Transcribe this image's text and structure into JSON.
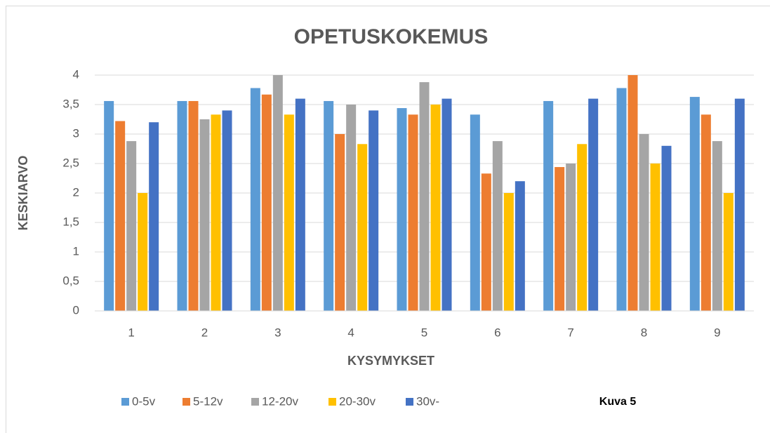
{
  "chart_data": {
    "type": "bar",
    "title": "OPETUSKOKEMUS",
    "x_label": "KYSYMYKSET",
    "y_label": "KESKIARVO",
    "annotation": "Kuva 5",
    "categories": [
      "1",
      "2",
      "3",
      "4",
      "5",
      "6",
      "7",
      "8",
      "9"
    ],
    "series": [
      {
        "name": "0-5v",
        "color": "#5b9bd5",
        "values": [
          3.56,
          3.56,
          3.78,
          3.56,
          3.44,
          3.33,
          3.56,
          3.78,
          3.63
        ]
      },
      {
        "name": "5-12v",
        "color": "#ed7d31",
        "values": [
          3.22,
          3.56,
          3.67,
          3.0,
          3.33,
          2.33,
          2.44,
          4.0,
          3.33
        ]
      },
      {
        "name": "12-20v",
        "color": "#a5a5a5",
        "values": [
          2.88,
          3.25,
          4.0,
          3.5,
          3.88,
          2.88,
          2.5,
          3.0,
          2.88
        ]
      },
      {
        "name": "20-30v",
        "color": "#ffc000",
        "values": [
          2.0,
          3.33,
          3.33,
          2.83,
          3.5,
          2.0,
          2.83,
          2.5,
          2.0
        ]
      },
      {
        "name": "30v-",
        "color": "#4472c4",
        "values": [
          3.2,
          3.4,
          3.6,
          3.4,
          3.6,
          2.2,
          3.6,
          2.8,
          3.6
        ]
      }
    ],
    "ylim": [
      0,
      4
    ],
    "yticks": [
      0,
      {
        "value": 0.5,
        "label": "0,5"
      },
      1,
      {
        "value": 1.5,
        "label": "1,5"
      },
      2,
      {
        "value": 2.5,
        "label": "2,5"
      },
      3,
      {
        "value": 3.5,
        "label": "3,5"
      },
      4
    ],
    "grid": true,
    "legend": "bottom"
  }
}
